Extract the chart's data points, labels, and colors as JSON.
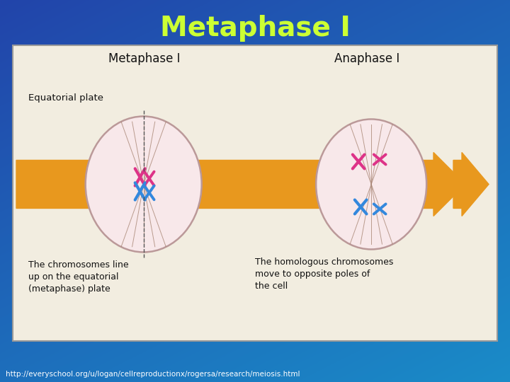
{
  "title": "Metaphase I",
  "title_color": "#ccff33",
  "title_fontsize": 28,
  "url_text": "http://everyschool.org/u/logan/cellreproductionx/rogersa/research/meiosis.html",
  "url_color": "#ffffff",
  "url_fontsize": 7.5,
  "image_bg": "#f2ede0",
  "arrow_color": "#e8981e",
  "label_metaphase": "Metaphase I",
  "label_anaphase": "Anaphase I",
  "label_equatorial": "Equatorial plate",
  "caption_left": "The chromosomes line\nup on the equatorial\n(metaphase) plate",
  "caption_right": "The homologous chromosomes\nmove to opposite poles of\nthe cell",
  "bg_colors": [
    "#1a8cc8",
    "#2244aa"
  ],
  "cell_face": "#f8e8ea",
  "cell_edge": "#bb9999",
  "spindle_color": "#aa8877",
  "pink_color": "#dd3388",
  "blue_color": "#3388dd",
  "dashed_color": "#555555",
  "text_color": "#111111"
}
